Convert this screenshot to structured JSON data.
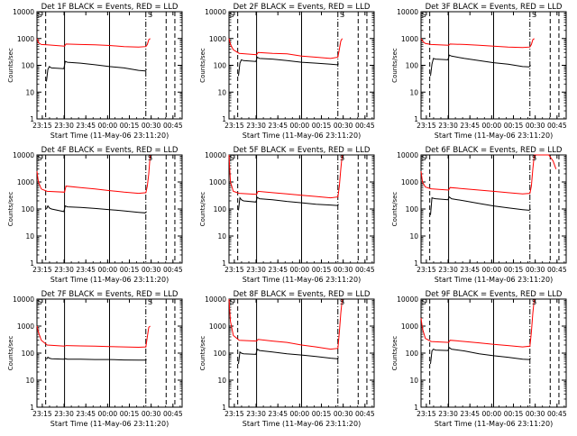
{
  "figure": {
    "ylabel": "Counts/sec",
    "xlabel": "Start Time (11-May-06 23:11:20)",
    "xticks": [
      "23:15",
      "23:30",
      "23:45",
      "00:00",
      "00:15",
      "00:30",
      "00:45"
    ],
    "yticks": [
      "1",
      "10",
      "100",
      "1000",
      "10000"
    ],
    "colors": {
      "events": "#000000",
      "lld": "#ff0000",
      "background": "#ffffff"
    },
    "marker_label": "S"
  },
  "chart_data": [
    {
      "type": "line",
      "title": "Det 1F BLACK = Events, RED = LLD",
      "xlabel": "Start Time (11-May-06 23:11:20)",
      "ylabel": "Counts/sec",
      "x_unit": "minutes since 23:11:20",
      "xlim": [
        0,
        100
      ],
      "ylim": [
        1,
        10000
      ],
      "yscale": "log",
      "vlines": {
        "dashed": [
          6,
          89,
          95
        ],
        "solid": [
          19,
          50
        ],
        "dashdot": [
          75
        ]
      },
      "series": [
        {
          "name": "LLD",
          "x": [
            0,
            1,
            3,
            7,
            19,
            20,
            30,
            40,
            50,
            60,
            70,
            75,
            76,
            77,
            78
          ],
          "values": [
            1000,
            700,
            600,
            580,
            520,
            620,
            600,
            580,
            550,
            500,
            480,
            500,
            600,
            900,
            1000
          ]
        },
        {
          "name": "Events",
          "x": [
            6.5,
            7.5,
            8.5,
            10,
            18.5,
            19.5,
            21,
            30,
            40,
            50,
            60,
            70,
            74.5,
            75.5
          ],
          "values": [
            25,
            70,
            90,
            80,
            75,
            140,
            130,
            120,
            105,
            90,
            80,
            65,
            62,
            70
          ]
        }
      ]
    },
    {
      "type": "line",
      "title": "Det 2F BLACK = Events, RED = LLD",
      "xlabel": "Start Time (11-May-06 23:11:20)",
      "ylabel": "Counts/sec",
      "x_unit": "minutes since 23:11:20",
      "xlim": [
        0,
        100
      ],
      "ylim": [
        1,
        10000
      ],
      "yscale": "log",
      "vlines": {
        "dashed": [
          6,
          89,
          95
        ],
        "solid": [
          19,
          50
        ],
        "dashdot": [
          75
        ]
      },
      "series": [
        {
          "name": "LLD",
          "x": [
            0,
            1,
            3,
            7,
            19,
            20,
            30,
            40,
            50,
            60,
            70,
            75,
            76,
            77,
            78
          ],
          "values": [
            1000,
            600,
            380,
            280,
            250,
            300,
            280,
            270,
            220,
            200,
            180,
            200,
            400,
            800,
            1000
          ]
        },
        {
          "name": "Events",
          "x": [
            6.5,
            7.5,
            8.5,
            10,
            18.5,
            19.5,
            21,
            30,
            40,
            50,
            60,
            70,
            74.5,
            75.5
          ],
          "values": [
            40,
            120,
            160,
            150,
            140,
            200,
            180,
            170,
            150,
            130,
            120,
            110,
            105,
            115
          ]
        }
      ]
    },
    {
      "type": "line",
      "title": "Det 3F BLACK = Events, RED = LLD",
      "xlabel": "Start Time (11-May-06 23:11:20)",
      "ylabel": "Counts/sec",
      "x_unit": "minutes since 23:11:20",
      "xlim": [
        0,
        100
      ],
      "ylim": [
        1,
        10000
      ],
      "yscale": "log",
      "vlines": {
        "dashed": [
          6,
          89,
          95
        ],
        "solid": [
          19,
          50
        ],
        "dashdot": [
          75
        ]
      },
      "series": [
        {
          "name": "LLD",
          "x": [
            0,
            1,
            3,
            7,
            19,
            20,
            30,
            40,
            50,
            60,
            70,
            75,
            76,
            77,
            78
          ],
          "values": [
            1000,
            800,
            650,
            600,
            560,
            620,
            600,
            560,
            520,
            480,
            460,
            480,
            600,
            900,
            1000
          ]
        },
        {
          "name": "Events",
          "x": [
            6.5,
            7.5,
            8.5,
            10,
            18.5,
            19.5,
            21,
            30,
            40,
            50,
            60,
            70,
            74.5,
            75.5
          ],
          "values": [
            40,
            110,
            180,
            170,
            160,
            240,
            220,
            180,
            150,
            125,
            110,
            90,
            88,
            100
          ]
        }
      ]
    },
    {
      "type": "line",
      "title": "Det 4F BLACK = Events, RED = LLD",
      "xlabel": "Start Time (11-May-06 23:11:20)",
      "ylabel": "Counts/sec",
      "x_unit": "minutes since 23:11:20",
      "xlim": [
        0,
        100
      ],
      "ylim": [
        1,
        10000
      ],
      "yscale": "log",
      "vlines": {
        "dashed": [
          6,
          89,
          95
        ],
        "solid": [
          19,
          50
        ],
        "dashdot": [
          75
        ]
      },
      "series": [
        {
          "name": "LLD",
          "x": [
            0,
            1,
            3,
            7,
            19,
            20,
            30,
            40,
            50,
            60,
            70,
            75,
            76,
            77,
            78
          ],
          "values": [
            2500,
            1000,
            550,
            450,
            420,
            700,
            620,
            550,
            480,
            420,
            380,
            400,
            700,
            2000,
            10000
          ]
        },
        {
          "name": "Events",
          "x": [
            6.5,
            7.5,
            8.5,
            10,
            18.5,
            19.5,
            21,
            30,
            40,
            50,
            60,
            70,
            74.5,
            75.5
          ],
          "values": [
            100,
            130,
            110,
            100,
            80,
            130,
            120,
            115,
            105,
            95,
            85,
            75,
            72,
            80
          ]
        }
      ]
    },
    {
      "type": "line",
      "title": "Det 5F BLACK = Events, RED = LLD",
      "xlabel": "Start Time (11-May-06 23:11:20)",
      "ylabel": "Counts/sec",
      "x_unit": "minutes since 23:11:20",
      "xlim": [
        0,
        100
      ],
      "ylim": [
        1,
        10000
      ],
      "yscale": "log",
      "vlines": {
        "dashed": [
          6,
          89,
          95
        ],
        "solid": [
          19,
          50
        ],
        "dashdot": [
          75
        ]
      },
      "series": [
        {
          "name": "LLD",
          "x": [
            0,
            1,
            3,
            7,
            19,
            20,
            30,
            40,
            50,
            60,
            70,
            75,
            76,
            77,
            78
          ],
          "values": [
            10000,
            1000,
            450,
            380,
            350,
            450,
            400,
            360,
            320,
            290,
            260,
            280,
            700,
            3000,
            10000
          ]
        },
        {
          "name": "Events",
          "x": [
            6.5,
            7.5,
            8.5,
            10,
            18.5,
            19.5,
            21,
            30,
            40,
            50,
            60,
            70,
            74.5,
            75.5
          ],
          "values": [
            90,
            260,
            220,
            200,
            180,
            270,
            240,
            220,
            190,
            170,
            150,
            140,
            135,
            150
          ]
        }
      ]
    },
    {
      "type": "line",
      "title": "Det 6F BLACK = Events, RED = LLD",
      "xlabel": "Start Time (11-May-06 23:11:20)",
      "ylabel": "Counts/sec",
      "x_unit": "minutes since 23:11:20",
      "xlim": [
        0,
        100
      ],
      "ylim": [
        1,
        10000
      ],
      "yscale": "log",
      "vlines": {
        "dashed": [
          6,
          89,
          95
        ],
        "solid": [
          19,
          50
        ],
        "dashdot": [
          75
        ]
      },
      "series": [
        {
          "name": "LLD",
          "x": [
            0,
            1,
            3,
            7,
            19,
            20,
            30,
            40,
            50,
            60,
            70,
            75,
            76,
            77,
            78,
            88,
            91,
            93
          ],
          "values": [
            2500,
            1000,
            650,
            560,
            500,
            620,
            560,
            500,
            450,
            400,
            360,
            380,
            700,
            3000,
            10000,
            10000,
            6000,
            3000
          ]
        },
        {
          "name": "Events",
          "x": [
            6.5,
            7.5,
            8.5,
            10,
            18.5,
            19.5,
            21,
            30,
            40,
            50,
            60,
            70,
            74.5,
            75.5
          ],
          "values": [
            60,
            260,
            250,
            240,
            220,
            280,
            240,
            200,
            160,
            130,
            110,
            95,
            90,
            100
          ]
        }
      ]
    },
    {
      "type": "line",
      "title": "Det 7F BLACK = Events, RED = LLD",
      "xlabel": "Start Time (11-May-06 23:11:20)",
      "ylabel": "Counts/sec",
      "x_unit": "minutes since 23:11:20",
      "xlim": [
        0,
        100
      ],
      "ylim": [
        1,
        10000
      ],
      "yscale": "log",
      "vlines": {
        "dashed": [
          6,
          89,
          95
        ],
        "solid": [
          19,
          50
        ],
        "dashdot": [
          75
        ]
      },
      "series": [
        {
          "name": "LLD",
          "x": [
            0,
            1,
            3,
            7,
            19,
            20,
            30,
            40,
            50,
            60,
            70,
            75,
            76,
            77,
            78
          ],
          "values": [
            1000,
            600,
            300,
            200,
            180,
            190,
            185,
            180,
            175,
            170,
            165,
            170,
            400,
            900,
            1000
          ]
        },
        {
          "name": "Events",
          "x": [
            6.5,
            7.5,
            8.5,
            10,
            18.5,
            19.5,
            21,
            30,
            40,
            50,
            60,
            70,
            74.5,
            75.5
          ],
          "values": [
            60,
            70,
            65,
            62,
            60,
            62,
            60,
            60,
            58,
            58,
            56,
            55,
            55,
            58
          ]
        }
      ]
    },
    {
      "type": "line",
      "title": "Det 8F BLACK = Events, RED = LLD",
      "xlabel": "Start Time (11-May-06 23:11:20)",
      "ylabel": "Counts/sec",
      "x_unit": "minutes since 23:11:20",
      "xlim": [
        0,
        100
      ],
      "ylim": [
        1,
        10000
      ],
      "yscale": "log",
      "vlines": {
        "dashed": [
          6,
          89,
          95
        ],
        "solid": [
          19,
          50
        ],
        "dashdot": [
          75
        ]
      },
      "series": [
        {
          "name": "LLD",
          "x": [
            0,
            1,
            3,
            7,
            19,
            20,
            30,
            40,
            50,
            60,
            70,
            75,
            76,
            77,
            78
          ],
          "values": [
            10000,
            1500,
            450,
            300,
            280,
            320,
            280,
            250,
            200,
            170,
            140,
            150,
            600,
            3000,
            10000
          ]
        },
        {
          "name": "Events",
          "x": [
            6.5,
            7.5,
            8.5,
            10,
            18.5,
            19.5,
            21,
            30,
            40,
            50,
            60,
            70,
            74.5,
            75.5
          ],
          "values": [
            40,
            110,
            100,
            95,
            90,
            140,
            125,
            110,
            95,
            85,
            75,
            65,
            62,
            70
          ]
        }
      ]
    },
    {
      "type": "line",
      "title": "Det 9F BLACK = Events, RED = LLD",
      "xlabel": "Start Time (11-May-06 23:11:20)",
      "ylabel": "Counts/sec",
      "x_unit": "minutes since 23:11:20",
      "xlim": [
        0,
        100
      ],
      "ylim": [
        1,
        10000
      ],
      "yscale": "log",
      "vlines": {
        "dashed": [
          6,
          89,
          95
        ],
        "solid": [
          19,
          50
        ],
        "dashdot": [
          75
        ]
      },
      "series": [
        {
          "name": "LLD",
          "x": [
            0,
            1,
            3,
            7,
            19,
            20,
            30,
            40,
            50,
            60,
            70,
            75,
            76,
            77,
            78
          ],
          "values": [
            2000,
            800,
            350,
            270,
            250,
            300,
            270,
            240,
            210,
            190,
            170,
            180,
            600,
            3000,
            10000
          ]
        },
        {
          "name": "Events",
          "x": [
            6.5,
            7.5,
            8.5,
            10,
            18.5,
            19.5,
            21,
            30,
            40,
            50,
            60,
            70,
            74.5,
            75.5
          ],
          "values": [
            40,
            120,
            140,
            130,
            125,
            160,
            140,
            120,
            95,
            80,
            70,
            60,
            58,
            65
          ]
        }
      ]
    }
  ]
}
